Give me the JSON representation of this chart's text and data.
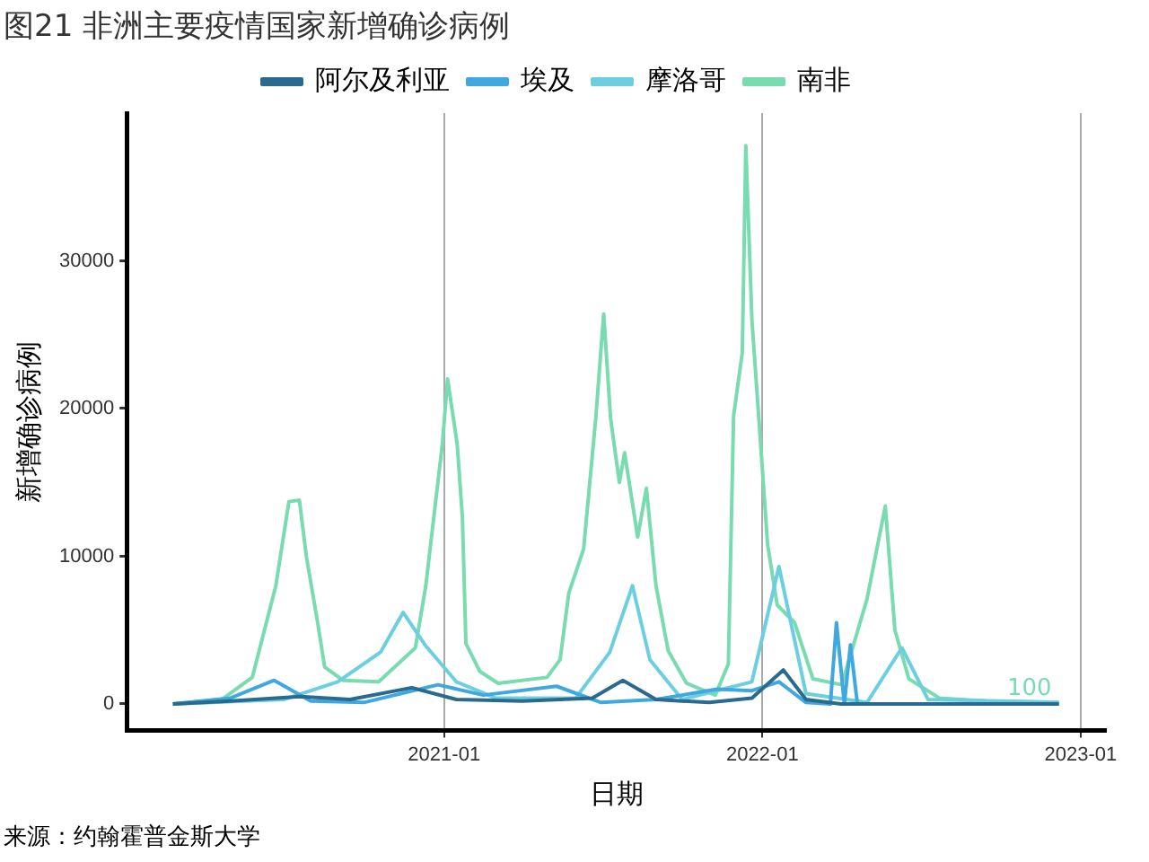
{
  "chart_data": {
    "type": "line",
    "title": "图21 非洲主要疫情国家新增确诊病例",
    "xlabel": "日期",
    "ylabel": "新增确诊病例",
    "xlim": [
      "2020-01-03",
      "2023-01-30"
    ],
    "xticks": [
      "2021-01",
      "2022-01",
      "2023-01"
    ],
    "ylim": [
      -1800,
      40000
    ],
    "yticks": [
      0,
      10000,
      20000,
      30000
    ],
    "grid": "x",
    "legend": "top",
    "series": [
      {
        "name": "阿尔及利亚",
        "color": "#2a6a8e",
        "x": [
          "2020-02-25",
          "2020-05-01",
          "2020-07-20",
          "2020-09-15",
          "2020-11-25",
          "2021-01-15",
          "2021-04-01",
          "2021-06-20",
          "2021-07-25",
          "2021-09-01",
          "2021-11-01",
          "2021-12-20",
          "2022-01-25",
          "2022-02-20",
          "2022-04-01",
          "2022-12-07"
        ],
        "values": [
          0,
          200,
          500,
          300,
          1100,
          300,
          200,
          400,
          1600,
          300,
          100,
          400,
          2300,
          300,
          0,
          0
        ]
      },
      {
        "name": "埃及",
        "color": "#3fa9df",
        "x": [
          "2020-02-25",
          "2020-05-01",
          "2020-06-20",
          "2020-08-01",
          "2020-10-01",
          "2020-12-25",
          "2021-02-15",
          "2021-05-10",
          "2021-06-30",
          "2021-09-01",
          "2021-11-10",
          "2021-12-20",
          "2022-01-20",
          "2022-02-20",
          "2022-03-20",
          "2022-03-27",
          "2022-04-05",
          "2022-04-12",
          "2022-04-20",
          "2022-06-01",
          "2022-12-07"
        ],
        "values": [
          0,
          400,
          1600,
          200,
          100,
          1300,
          600,
          1200,
          100,
          300,
          1000,
          900,
          1500,
          100,
          0,
          5500,
          0,
          4000,
          0,
          0,
          0
        ]
      },
      {
        "name": "摩洛哥",
        "color": "#6ccfe0",
        "x": [
          "2020-02-25",
          "2020-07-01",
          "2020-09-01",
          "2020-10-20",
          "2020-11-15",
          "2020-12-10",
          "2021-01-15",
          "2021-03-01",
          "2021-06-01",
          "2021-07-10",
          "2021-08-05",
          "2021-08-25",
          "2021-10-01",
          "2021-12-20",
          "2022-01-20",
          "2022-02-20",
          "2022-05-01",
          "2022-06-10",
          "2022-07-10",
          "2022-12-07"
        ],
        "values": [
          0,
          300,
          1500,
          3500,
          6200,
          4000,
          1500,
          400,
          400,
          3500,
          8000,
          3000,
          300,
          1500,
          9300,
          700,
          100,
          3800,
          300,
          100
        ]
      },
      {
        "name": "南非",
        "color": "#79dbb0",
        "x": [
          "2020-02-25",
          "2020-04-21",
          "2020-05-26",
          "2020-06-22",
          "2020-07-07",
          "2020-07-19",
          "2020-07-27",
          "2020-08-09",
          "2020-08-17",
          "2020-09-07",
          "2020-10-18",
          "2020-11-29",
          "2020-12-11",
          "2020-12-30",
          "2021-01-05",
          "2021-01-16",
          "2021-01-22",
          "2021-01-26",
          "2021-02-11",
          "2021-03-04",
          "2021-04-29",
          "2021-05-14",
          "2021-05-24",
          "2021-06-10",
          "2021-06-24",
          "2021-07-03",
          "2021-07-11",
          "2021-07-21",
          "2021-07-27",
          "2021-08-11",
          "2021-08-21",
          "2021-09-01",
          "2021-09-15",
          "2021-10-06",
          "2021-11-08",
          "2021-11-23",
          "2021-11-29",
          "2021-12-09",
          "2021-12-13",
          "2021-12-20",
          "2021-12-28",
          "2022-01-07",
          "2022-01-18",
          "2022-02-07",
          "2022-02-28",
          "2022-04-02",
          "2022-05-01",
          "2022-05-22",
          "2022-06-02",
          "2022-06-18",
          "2022-07-23",
          "2022-09-15",
          "2022-12-07"
        ],
        "values": [
          0,
          300,
          1800,
          8000,
          13700,
          13800,
          10000,
          5500,
          2500,
          1600,
          1500,
          3800,
          8000,
          17600,
          22000,
          17600,
          12600,
          4100,
          2200,
          1400,
          1800,
          3000,
          7500,
          10500,
          19400,
          26400,
          19300,
          15000,
          17000,
          11300,
          14600,
          8000,
          3600,
          1400,
          600,
          2700,
          19500,
          23800,
          37800,
          26000,
          19300,
          10800,
          6700,
          5500,
          1700,
          1300,
          7100,
          13400,
          5000,
          1700,
          400,
          200,
          100
        ]
      }
    ],
    "annotations": [
      {
        "text": "100",
        "x": "2022-12-07",
        "y": 100
      },
      "来源：约翰霍普金斯大学"
    ]
  }
}
